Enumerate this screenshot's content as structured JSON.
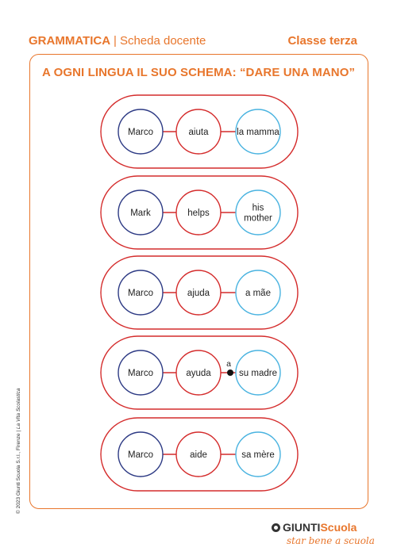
{
  "header": {
    "subject": "GRAMMATICA",
    "separator": "|",
    "doc_type": "Scheda docente",
    "class_level": "Classe terza"
  },
  "title": "A OGNI LINGUA IL SUO SCHEMA: “DARE UNA MANO”",
  "schemes": [
    {
      "subject": "Marco",
      "verb": "aiuta",
      "object": [
        "la mamma"
      ],
      "preposition": ""
    },
    {
      "subject": "Mark",
      "verb": "helps",
      "object": [
        "his",
        "mother"
      ],
      "preposition": ""
    },
    {
      "subject": "Marco",
      "verb": "ajuda",
      "object": [
        "a mãe"
      ],
      "preposition": ""
    },
    {
      "subject": "Marco",
      "verb": "ayuda",
      "object": [
        "su madre"
      ],
      "preposition": "a"
    },
    {
      "subject": "Marco",
      "verb": "aide",
      "object": [
        "sa mère"
      ],
      "preposition": ""
    }
  ],
  "colors": {
    "accent": "#e8762c",
    "outline": "#d42b2b",
    "subject_circle": "#2d3a84",
    "verb_circle": "#d42b2b",
    "object_circle": "#49b3e0"
  },
  "side_text": {
    "copyright": "© 2023 Giunti Scuola S.r.l., Firenze | ",
    "magazine": "La Vita Scolastica"
  },
  "logo": {
    "icon": "g-logo-icon",
    "brand_part1": "GIUNTI",
    "brand_part2": "Scuola",
    "tagline": "star bene a scuola"
  }
}
